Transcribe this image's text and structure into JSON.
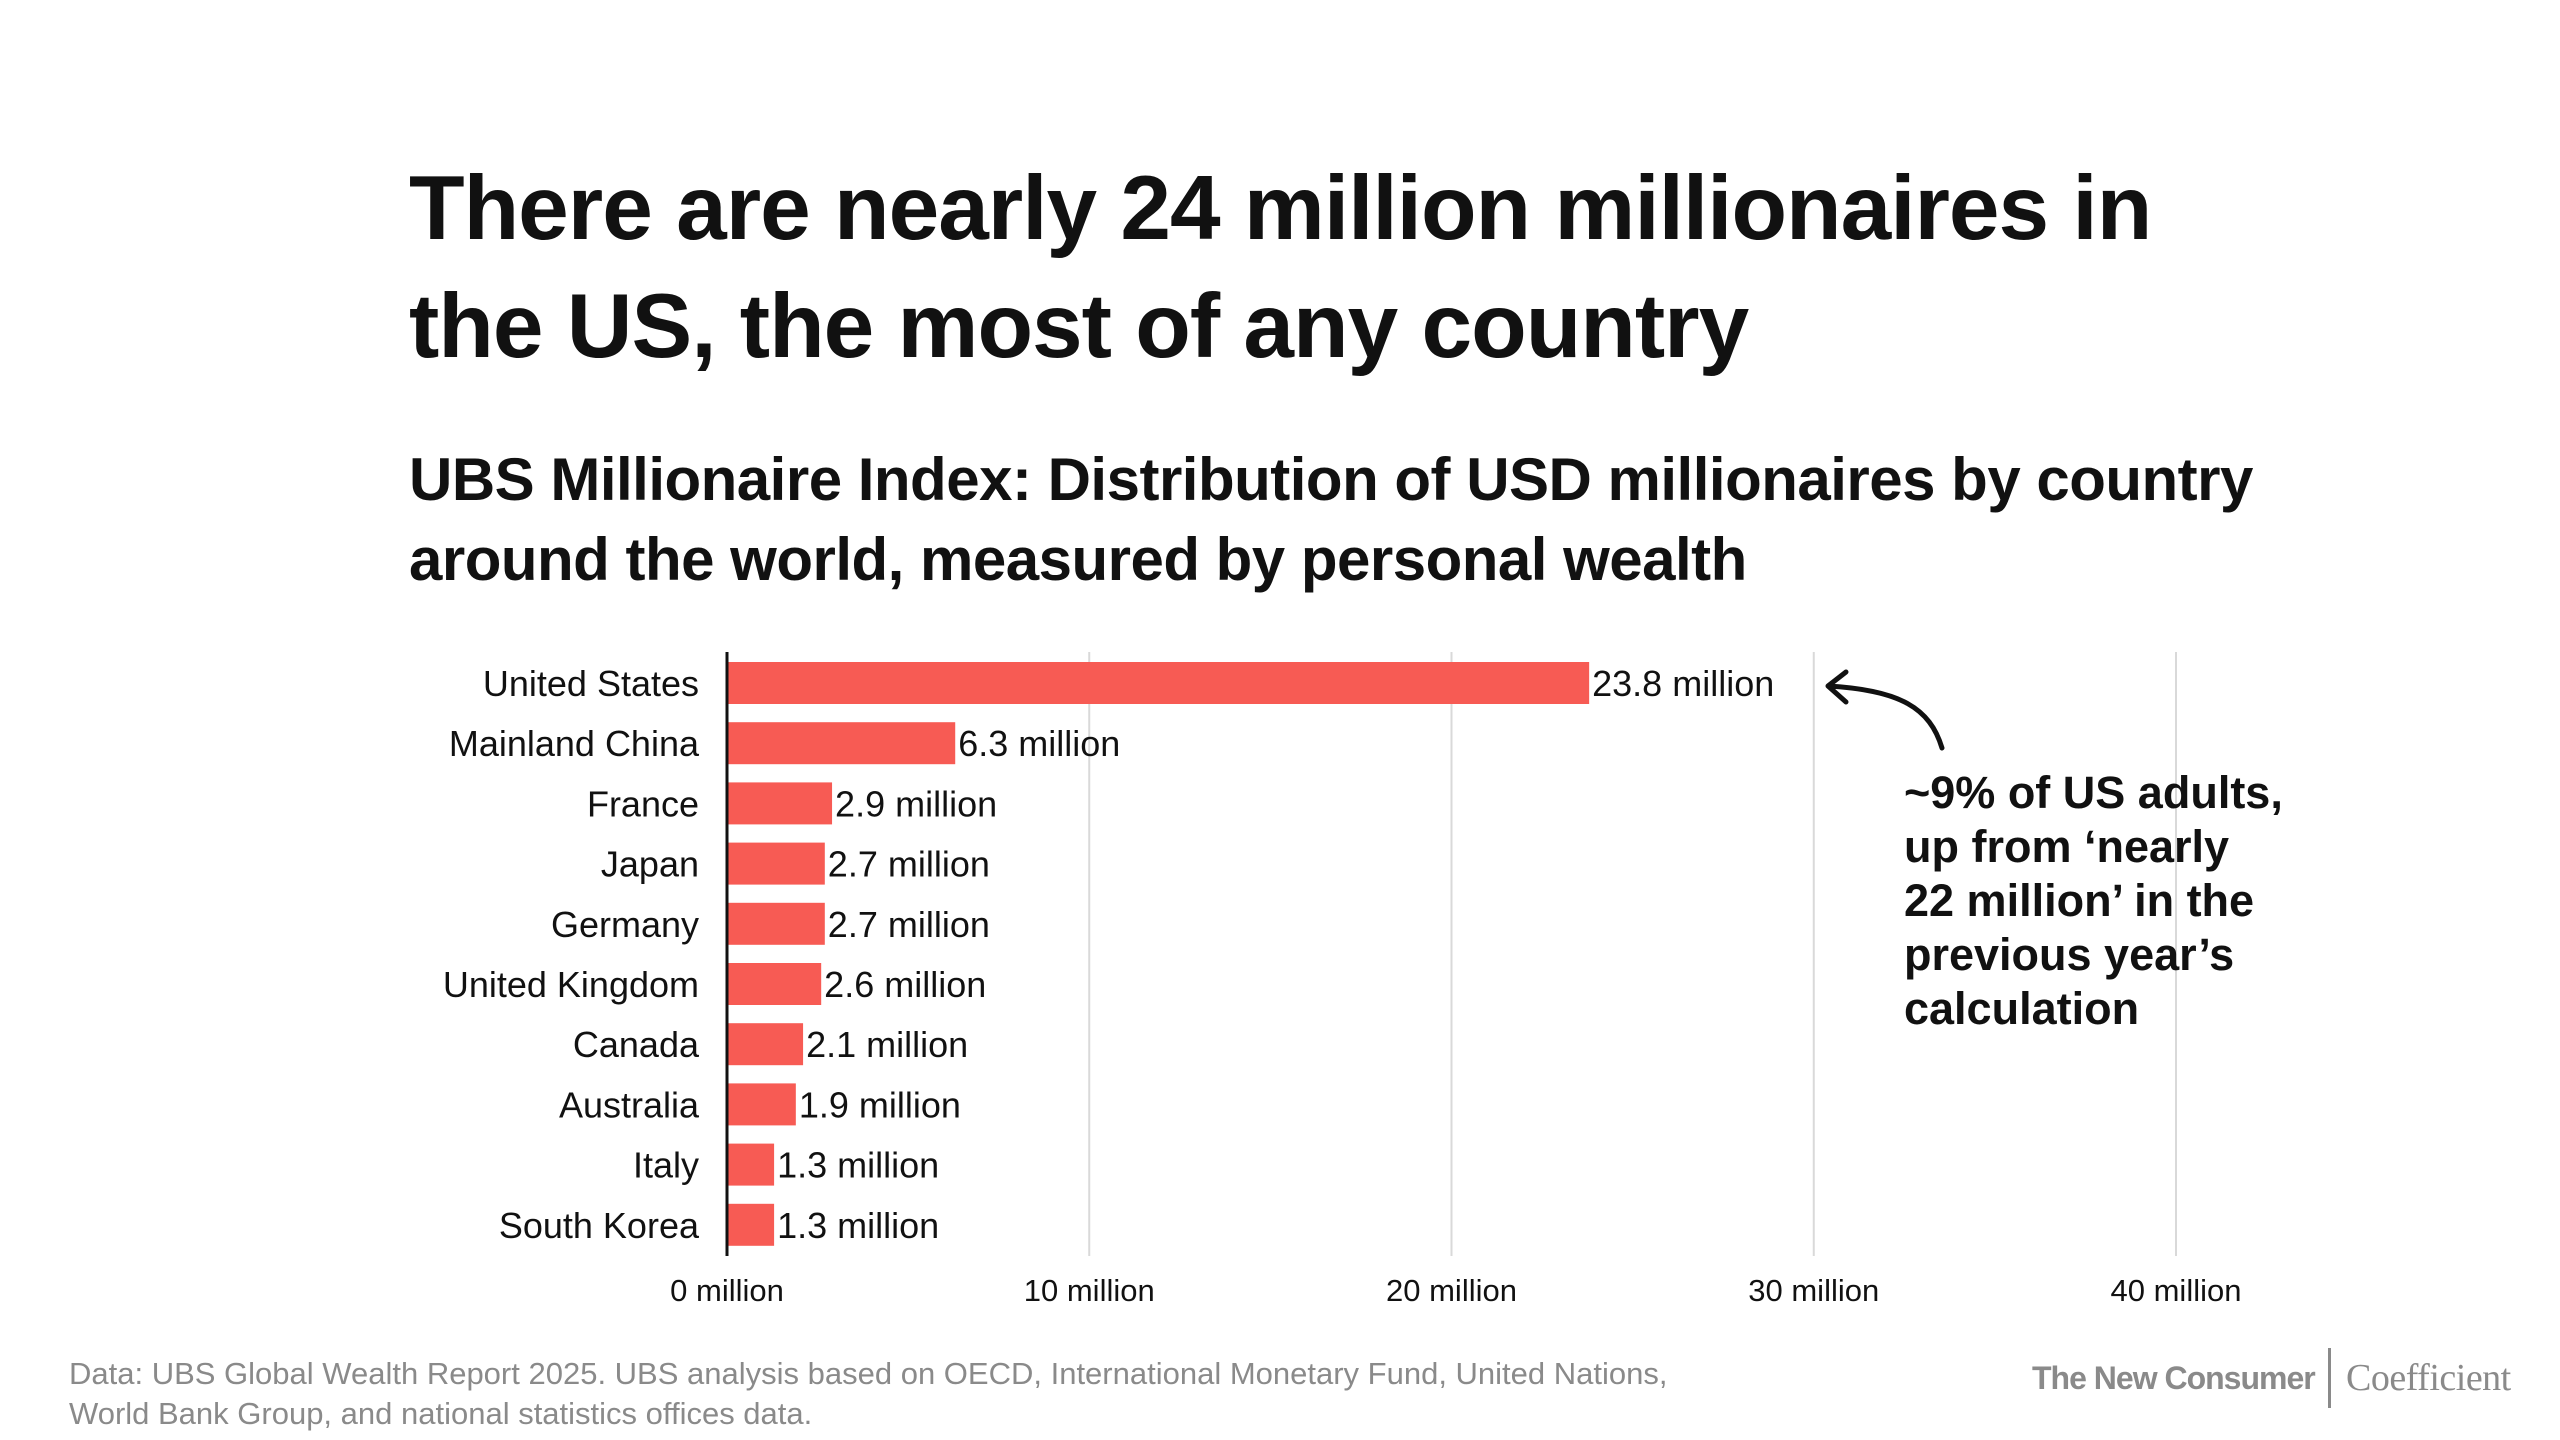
{
  "headline": "There are nearly 24 million millionaires in the US, the most of any country",
  "subtitle": "UBS Millionaire Index: Distribution of USD millionaires by country around the world, measured by personal wealth",
  "chart_data": {
    "type": "bar",
    "orientation": "horizontal",
    "categories": [
      "United States",
      "Mainland China",
      "France",
      "Japan",
      "Germany",
      "United Kingdom",
      "Canada",
      "Australia",
      "Italy",
      "South Korea"
    ],
    "values": [
      23.8,
      6.3,
      2.9,
      2.7,
      2.7,
      2.6,
      2.1,
      1.9,
      1.3,
      1.3
    ],
    "value_labels": [
      "23.8 million",
      "6.3 million",
      "2.9 million",
      "2.7 million",
      "2.7 million",
      "2.6 million",
      "2.1 million",
      "1.9 million",
      "1.3 million",
      "1.3 million"
    ],
    "xlim": [
      0,
      40
    ],
    "xticks": [
      0,
      10,
      20,
      30,
      40
    ],
    "xtick_labels": [
      "0 million",
      "10 million",
      "20 million",
      "30 million",
      "40 million"
    ],
    "grid": true,
    "bar_color": "#f75b54",
    "gridline_color": "#d9d9d9",
    "axis_color": "#111111"
  },
  "annotation": {
    "text": "~9% of US adults,\nup from ‘nearly\n22 million’ in the\nprevious year’s\ncalculation",
    "target": "United States"
  },
  "source": "Data: UBS Global Wealth Report 2025. UBS analysis based on OECD, International Monetary Fund, United Nations,\nWorld Bank Group, and national statistics offices data.",
  "brands": {
    "primary": "The New Consumer",
    "secondary": "Coefficient"
  }
}
